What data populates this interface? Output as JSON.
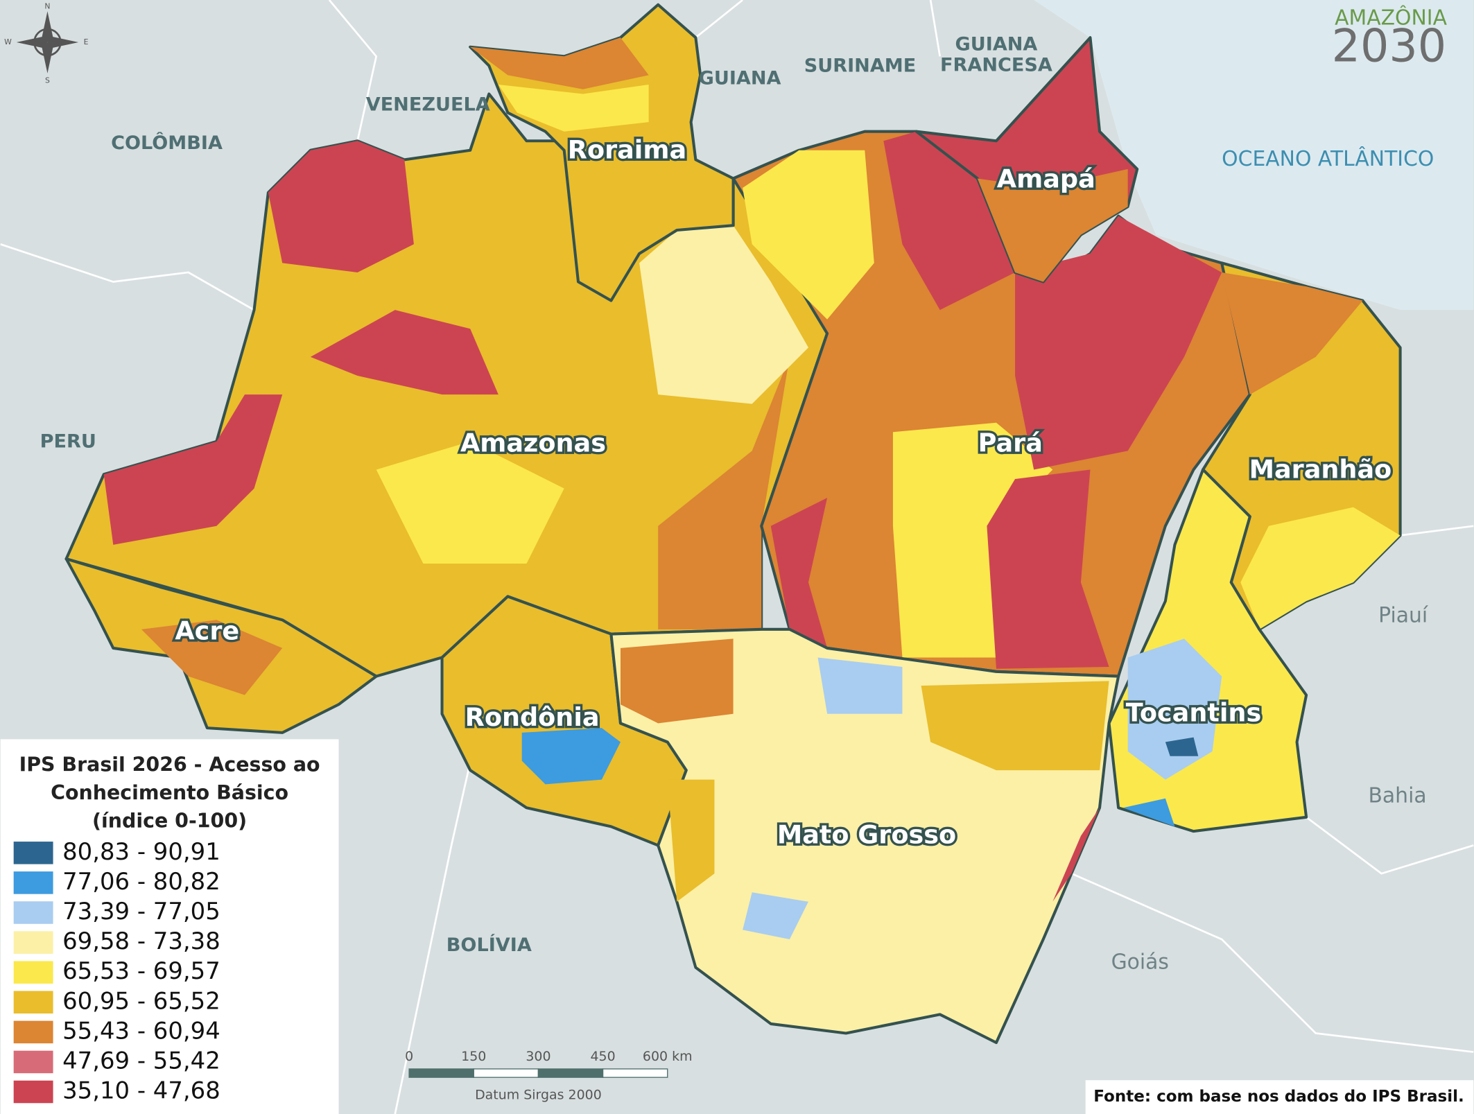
{
  "compass": {
    "n": "N",
    "w": "W",
    "e": "E",
    "s": "S"
  },
  "logo": {
    "name": "AMAZÔNIA",
    "year": "2030"
  },
  "countries": {
    "colombia": "COLÔMBIA",
    "venezuela": "VENEZUELA",
    "guiana": "GUIANA",
    "suriname": "SURINAME",
    "guiana_francesa": [
      "GUIANA",
      "FRANCESA"
    ],
    "peru": "PERU",
    "bolivia": "BOLÍVIA"
  },
  "ocean": "OCEANO ATLÂNTICO",
  "states": {
    "roraima": "Roraima",
    "amapa": "Amapá",
    "amazonas": "Amazonas",
    "para": "Pará",
    "maranhao": "Maranhão",
    "acre": "Acre",
    "rondonia": "Rondônia",
    "tocantins": "Tocantins",
    "mato_grosso": "Mato Grosso"
  },
  "neighbor_states": {
    "piaui": "Piauí",
    "bahia": "Bahia",
    "goias": "Goiás"
  },
  "legend": {
    "title": [
      "IPS Brasil 2026 - Acesso ao",
      "Conhecimento Básico",
      "(índice 0-100)"
    ],
    "items": [
      {
        "label": "80,83 - 90,91",
        "color": "#2c6690"
      },
      {
        "label": "77,06 - 80,82",
        "color": "#3d9be0"
      },
      {
        "label": "73,39 - 77,05",
        "color": "#a9cdf0"
      },
      {
        "label": "69,58 - 73,38",
        "color": "#fcf0a6"
      },
      {
        "label": "65,53 - 69,57",
        "color": "#fbe84c"
      },
      {
        "label": "60,95 - 65,52",
        "color": "#e9bd2c"
      },
      {
        "label": "55,43 - 60,94",
        "color": "#dc8533"
      },
      {
        "label": "47,69 - 55,42",
        "color": "#d86b78"
      },
      {
        "label": "35,10 - 47,68",
        "color": "#cc4452"
      }
    ]
  },
  "scale_bar": {
    "labels": [
      "0",
      "150",
      "300",
      "450",
      "600 km"
    ],
    "datum": "Datum Sirgas 2000"
  },
  "source": "Fonte: com base nos dados do IPS Brasil."
}
